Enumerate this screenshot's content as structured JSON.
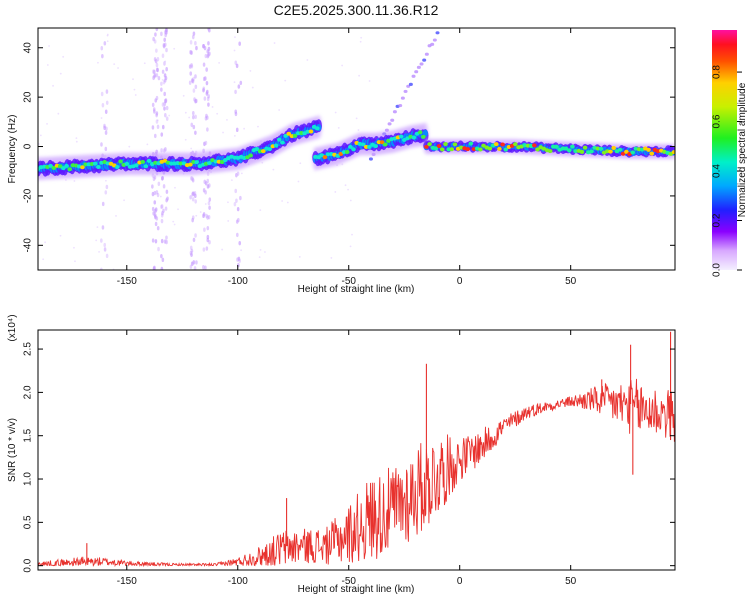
{
  "title": "C2E5.2025.300.11.36.R12",
  "chart_data": [
    {
      "type": "heatmap",
      "xlabel": "Height of straight line (km)",
      "ylabel": "Frequency (Hz)",
      "xlim": [
        -190,
        97
      ],
      "ylim": [
        -50,
        48
      ],
      "xticks": [
        -150,
        -100,
        -50,
        0,
        50
      ],
      "yticks": [
        -40,
        -20,
        0,
        20,
        40
      ],
      "colorbar": {
        "label": "Normalized spectral amplitude",
        "range": [
          0.0,
          0.97
        ],
        "ticks": [
          "0.0",
          "0.2",
          "0.4",
          "0.6",
          "0.8"
        ],
        "tick_values": [
          0.0,
          0.2,
          0.4,
          0.6,
          0.8
        ]
      },
      "trace_segments": [
        {
          "name": "main-trace-low",
          "points": [
            [
              -190,
              -9
            ],
            [
              -150,
              -7
            ],
            [
              -120,
              -7
            ],
            [
              -100,
              -5
            ],
            [
              -85,
              0
            ],
            [
              -75,
              5
            ],
            [
              -63,
              8
            ]
          ]
        },
        {
          "name": "main-trace-mid",
          "points": [
            [
              -65,
              -5
            ],
            [
              -55,
              -3
            ],
            [
              -45,
              1
            ],
            [
              -38,
              1
            ],
            [
              -30,
              2
            ],
            [
              -22,
              4
            ],
            [
              -15,
              5
            ]
          ]
        },
        {
          "name": "main-trace-high",
          "points": [
            [
              -15,
              0
            ],
            [
              0,
              0
            ],
            [
              25,
              0
            ],
            [
              50,
              -1
            ],
            [
              75,
              -2
            ],
            [
              97,
              -2
            ]
          ]
        }
      ],
      "notes": "Broadband vertical streaks near -135 and -118 km; weak diagonal branch from -40 km to -15 km reaching ~47 Hz"
    },
    {
      "type": "line",
      "xlabel": "Height of straight line (km)",
      "ylabel": "SNR (10 * v/v)",
      "y_multiplier": "(x10⁴)",
      "xlim": [
        -190,
        97
      ],
      "ylim": [
        -0.05,
        2.72
      ],
      "xticks": [
        -150,
        -100,
        -50,
        0,
        50
      ],
      "yticks": [
        0.0,
        0.5,
        1.0,
        1.5,
        2.0,
        2.5
      ],
      "color": "#e8322e",
      "envelope": [
        {
          "x": -190,
          "base": 0.02,
          "amp": 0.03
        },
        {
          "x": -180,
          "base": 0.03,
          "amp": 0.05
        },
        {
          "x": -170,
          "base": 0.05,
          "amp": 0.06
        },
        {
          "x": -160,
          "base": 0.05,
          "amp": 0.05
        },
        {
          "x": -150,
          "base": 0.03,
          "amp": 0.03
        },
        {
          "x": -130,
          "base": 0.01,
          "amp": 0.02
        },
        {
          "x": -110,
          "base": 0.01,
          "amp": 0.02
        },
        {
          "x": -100,
          "base": 0.05,
          "amp": 0.05
        },
        {
          "x": -90,
          "base": 0.12,
          "amp": 0.12
        },
        {
          "x": -80,
          "base": 0.22,
          "amp": 0.22
        },
        {
          "x": -70,
          "base": 0.25,
          "amp": 0.2
        },
        {
          "x": -60,
          "base": 0.25,
          "amp": 0.22
        },
        {
          "x": -50,
          "base": 0.4,
          "amp": 0.35
        },
        {
          "x": -40,
          "base": 0.6,
          "amp": 0.5
        },
        {
          "x": -30,
          "base": 0.7,
          "amp": 0.5
        },
        {
          "x": -20,
          "base": 0.9,
          "amp": 0.55
        },
        {
          "x": -10,
          "base": 1.1,
          "amp": 0.5
        },
        {
          "x": 0,
          "base": 1.25,
          "amp": 0.25
        },
        {
          "x": 10,
          "base": 1.4,
          "amp": 0.2
        },
        {
          "x": 20,
          "base": 1.62,
          "amp": 0.12
        },
        {
          "x": 30,
          "base": 1.78,
          "amp": 0.08
        },
        {
          "x": 40,
          "base": 1.85,
          "amp": 0.06
        },
        {
          "x": 50,
          "base": 1.9,
          "amp": 0.06
        },
        {
          "x": 60,
          "base": 1.93,
          "amp": 0.15
        },
        {
          "x": 70,
          "base": 1.9,
          "amp": 0.25
        },
        {
          "x": 80,
          "base": 1.85,
          "amp": 0.35
        },
        {
          "x": 90,
          "base": 1.8,
          "amp": 0.3
        },
        {
          "x": 97,
          "base": 1.75,
          "amp": 0.3
        }
      ],
      "spikes": [
        {
          "x": -168,
          "y": 0.26
        },
        {
          "x": -78,
          "y": 0.78
        },
        {
          "x": -15,
          "y": 2.33
        },
        {
          "x": 64,
          "y": 2.15
        },
        {
          "x": 77,
          "y": 2.55
        },
        {
          "x": 78,
          "y": 1.05
        },
        {
          "x": 95,
          "y": 2.7
        },
        {
          "x": 95,
          "y": 1.45
        }
      ]
    }
  ]
}
